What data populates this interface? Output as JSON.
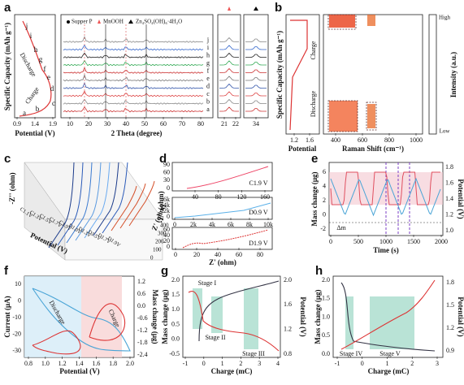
{
  "letters": [
    "a",
    "b",
    "c",
    "d",
    "e",
    "f",
    "g",
    "h"
  ],
  "a": {
    "ylabel": "Specific Capacity (mAh g⁻¹)",
    "xlabel": "Potential (V)",
    "xticks": [
      0.9,
      1.4,
      1.9
    ],
    "states": [
      "a",
      "b",
      "c",
      "d",
      "e",
      "f",
      "g",
      "h",
      "i",
      "j"
    ],
    "charge": "Charge",
    "discharge": "Discharge",
    "xrd": {
      "legend": [
        "Supper P",
        "MnOOH",
        "Zn₄SO₄(OH)₆·4H₂O"
      ],
      "xticks": [
        10,
        20,
        30,
        40,
        50,
        60,
        70,
        80
      ],
      "xlabel": "2 Theta (degree)",
      "traces": [
        "a",
        "b",
        "c",
        "d",
        "e",
        "f",
        "g",
        "h",
        "i",
        "j"
      ]
    },
    "zoom1_ticks": [
      21,
      22
    ],
    "zoom2_ticks": [
      34
    ]
  },
  "b": {
    "ylabel": "Specific Capacity (mAh g⁻¹)",
    "charge": "Charge",
    "discharge": "Discharge",
    "potential_ticks": [
      1.2,
      1.6
    ],
    "potential_label": "Potential",
    "xticks": [
      400,
      600,
      800,
      1000
    ],
    "xlabel": "Raman Shift (cm⁻¹)",
    "cbar_high": "High",
    "cbar_low": "Low",
    "cbar_label": "Intensity (a.u.)"
  },
  "c": {
    "ylabel": "-Z'' (ohm)",
    "xlabel": "Potential (V)",
    "zlabel": "Z' (ohm)",
    "potentials": [
      "C1.1V",
      "C1.3V",
      "C1.5V",
      "C1.7V",
      "C1.9V",
      "D1.0V",
      "D1.3V",
      "D1.5V",
      "D1.7V",
      "D1.9V"
    ],
    "zticks": [
      0,
      100,
      200,
      300,
      400
    ]
  },
  "d": {
    "ylabel": "-Z'' (ohm)",
    "xlabel": "Z' (ohm)",
    "top": {
      "label": "C1.9 V",
      "yticks": [
        90,
        60,
        30,
        0
      ],
      "xticks": [
        40,
        80,
        120,
        160
      ]
    },
    "middle": {
      "label": "D0.9 V",
      "yticks": [
        "6k",
        "4k",
        "2k",
        0
      ],
      "xticks": [
        0,
        "2k",
        "4k",
        "6k",
        "8k",
        "10k"
      ]
    },
    "bottom": {
      "label": "D1.9 V",
      "yticks": [
        60,
        40,
        20,
        0
      ],
      "xticks": [
        0,
        20,
        40,
        60,
        80
      ]
    }
  },
  "e": {
    "ylabel": "Mass change (μg)",
    "y2label": "Potential (V)",
    "xlabel": "Time (s)",
    "delta": "Δm",
    "yticks": [
      6,
      4,
      2,
      0,
      -2
    ],
    "y2ticks": [
      1.8,
      1.6,
      1.4,
      1.2,
      "1.0"
    ],
    "xticks": [
      0,
      500,
      1000,
      1500,
      2000
    ]
  },
  "f": {
    "ylabel": "Current (μA)",
    "y2label": "Mass change (μg)",
    "xlabel": "Potential (V)",
    "charge": "Charge",
    "discharge": "Discharge",
    "yticks": [
      10,
      0,
      -10,
      -20,
      -30
    ],
    "y2ticks": [
      1.2,
      0.6,
      "0.0",
      -0.6,
      -1.2,
      -1.8,
      -2.4
    ],
    "xticks": [
      0.8,
      "1.0",
      1.2,
      1.4,
      1.6,
      1.8,
      "2.0"
    ]
  },
  "g": {
    "ylabel": "Mass change (μg)",
    "y2label": "Potential (V)",
    "xlabel": "Charge (mC)",
    "stages": [
      "Stage I",
      "Stage II",
      "Stage III"
    ],
    "yticks": [
      "2.0",
      1.5,
      "1.0",
      0.5,
      "0.0",
      -0.5
    ],
    "y2ticks": [
      "2.0",
      1.6,
      1.2,
      0.8
    ],
    "xticks": [
      -1,
      0,
      1,
      2,
      3,
      4
    ]
  },
  "h": {
    "ylabel": "Mass change (μg)",
    "y2label": "Potential (V)",
    "xlabel": "Charge (mC)",
    "stages": [
      "Stage IV",
      "Stage V"
    ],
    "yticks": [
      "2.0",
      1.5,
      "1.0",
      0.5,
      "0.0"
    ],
    "y2ticks": [
      1.8,
      1.5,
      1.2,
      0.9
    ],
    "xticks": [
      -1,
      0,
      1,
      2,
      3
    ]
  }
}
